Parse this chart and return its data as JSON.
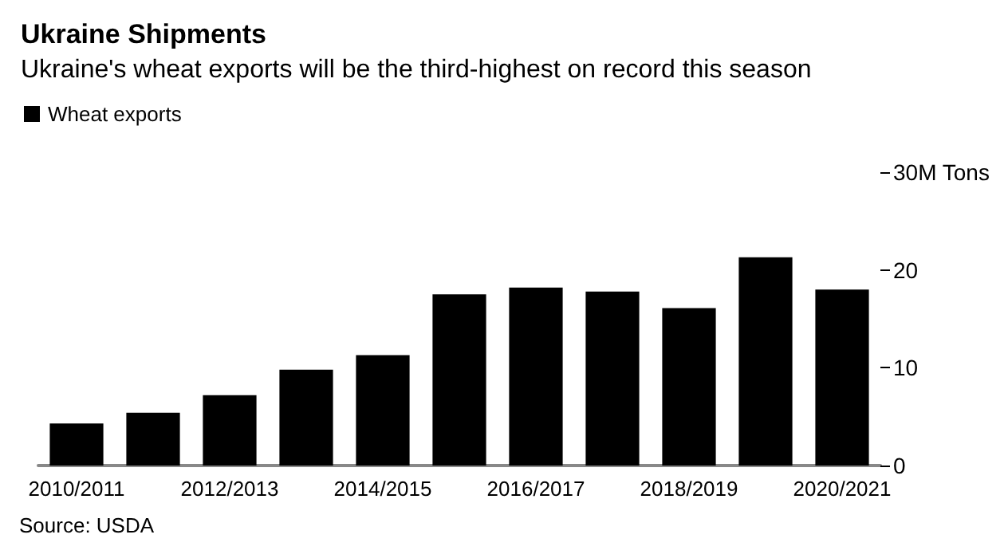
{
  "chart_data": {
    "type": "bar",
    "title": "Ukraine Shipments",
    "subtitle": "Ukraine's wheat exports will be the third-highest on record this season",
    "categories": [
      "2010/2011",
      null,
      "2012/2013",
      null,
      "2014/2015",
      null,
      "2016/2017",
      null,
      "2018/2019",
      null,
      "2020/2021"
    ],
    "series": [
      {
        "name": "Wheat exports",
        "color": "#000000",
        "values": [
          4.3,
          5.4,
          7.2,
          9.8,
          11.3,
          17.5,
          18.2,
          17.8,
          16.1,
          21.3,
          18.0
        ]
      }
    ],
    "ylim": [
      0,
      30
    ],
    "yticks": [
      0,
      10,
      20,
      {
        "value": 30,
        "label": "30M Tons"
      }
    ],
    "grid": false,
    "legend": "top left",
    "annotations": [
      "Source: USDA"
    ]
  }
}
